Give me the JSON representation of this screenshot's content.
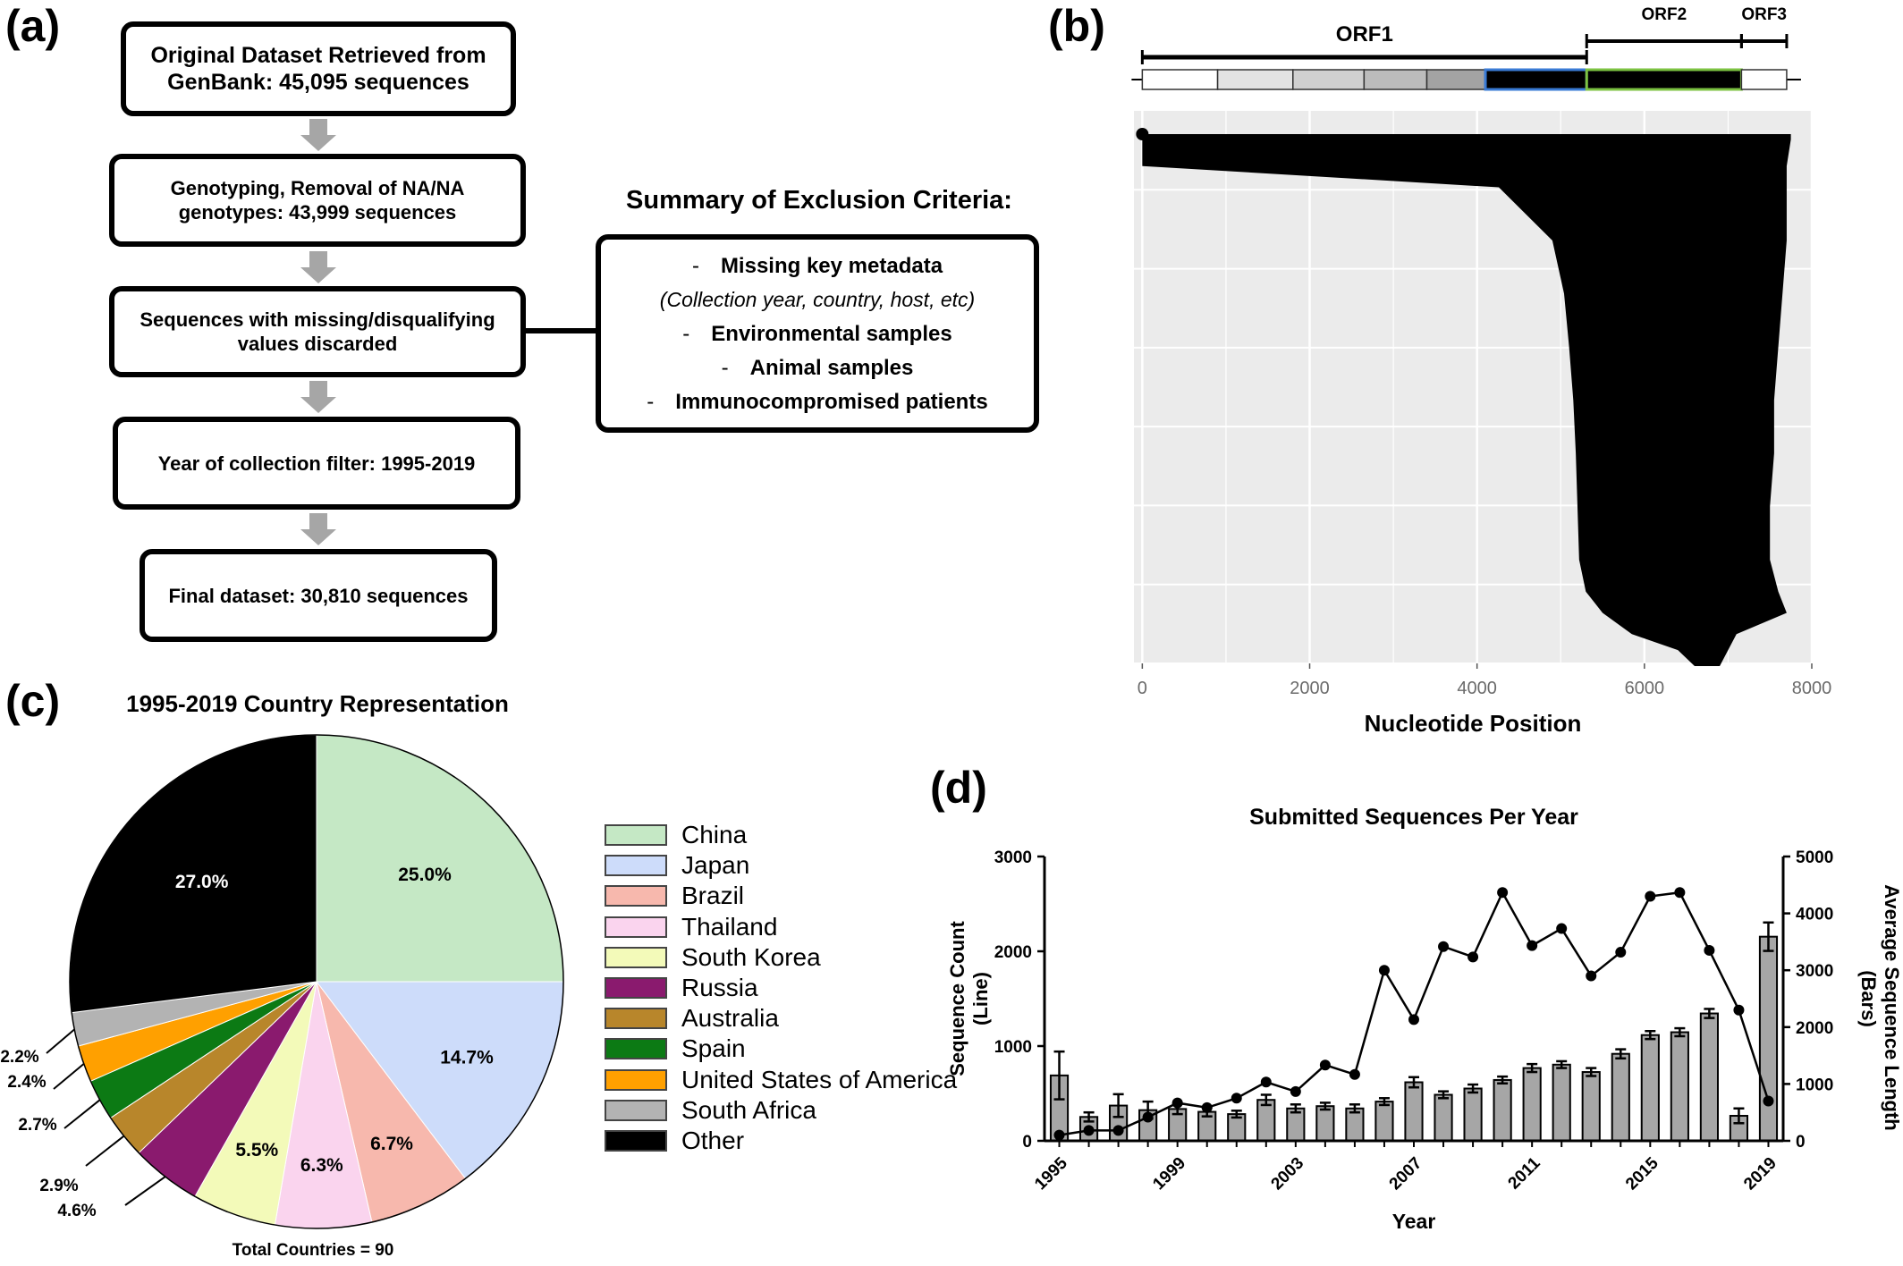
{
  "panels": {
    "a": "(a)",
    "b": "(b)",
    "c": "(c)",
    "d": "(d)"
  },
  "flow": {
    "box1": [
      "Original Dataset Retrieved from",
      "GenBank: 45,095 sequences"
    ],
    "box2": [
      "Genotyping, Removal of NA/NA",
      "genotypes: 43,999 sequences"
    ],
    "box3": [
      "Sequences with missing/disqualifying",
      "values discarded"
    ],
    "box4": [
      "Year of collection filter: 1995-2019"
    ],
    "box5": [
      "Final dataset: 30,810 sequences"
    ],
    "summary_title": "Summary of Exclusion Criteria:",
    "criteria": [
      {
        "dash": "-",
        "text": "Missing key metadata"
      },
      {
        "dash": "",
        "text": "(Collection year, country, host, etc)"
      },
      {
        "dash": "-",
        "text": "Environmental samples"
      },
      {
        "dash": "-",
        "text": "Animal samples"
      },
      {
        "dash": "-",
        "text": "Immunocompromised patients"
      }
    ]
  },
  "chart_data": [
    {
      "panel": "b",
      "type": "line",
      "xlabel": "Nucleotide Position",
      "xlim": [
        -100,
        8000
      ],
      "xticks": [
        0,
        2000,
        4000,
        6000,
        8000
      ],
      "grid": true,
      "background": "#ebebeb",
      "genome_map": {
        "orfs": [
          {
            "name": "ORF1",
            "start": 0,
            "end": 5310
          },
          {
            "name": "ORF2",
            "start": 5310,
            "end": 7160
          },
          {
            "name": "ORF3",
            "start": 7160,
            "end": 7700
          }
        ],
        "segments": [
          {
            "start": 0,
            "end": 900,
            "fill": "#ffffff",
            "stroke": "#333333"
          },
          {
            "start": 900,
            "end": 1800,
            "fill": "#e3e3e3",
            "stroke": "#333333"
          },
          {
            "start": 1800,
            "end": 2650,
            "fill": "#d0d0d0",
            "stroke": "#333333"
          },
          {
            "start": 2650,
            "end": 3400,
            "fill": "#bcbcbc",
            "stroke": "#333333"
          },
          {
            "start": 3400,
            "end": 4100,
            "fill": "#a3a3a3",
            "stroke": "#333333"
          },
          {
            "start": 4100,
            "end": 5310,
            "fill": "#000000",
            "stroke": "#3a7bd5"
          },
          {
            "start": 5310,
            "end": 7160,
            "fill": "#000000",
            "stroke": "#7cc242"
          },
          {
            "start": 7160,
            "end": 7700,
            "fill": "#ffffff",
            "stroke": "#333333"
          }
        ]
      },
      "coverage_profile": {
        "description_free": true,
        "rows_fraction": [
          0,
          0.01,
          0.06,
          0.1,
          0.2,
          0.3,
          0.4,
          0.5,
          0.6,
          0.7,
          0.8,
          0.86,
          0.9,
          0.94,
          0.97,
          1.0
        ],
        "start": [
          0,
          0,
          0,
          4260,
          4900,
          5040,
          5100,
          5150,
          5180,
          5200,
          5220,
          5300,
          5500,
          5850,
          6400,
          6600
        ],
        "end": [
          7750,
          7750,
          7700,
          7700,
          7700,
          7650,
          7600,
          7550,
          7550,
          7500,
          7500,
          7600,
          7700,
          7100,
          7000,
          6900
        ]
      }
    },
    {
      "panel": "c",
      "type": "pie",
      "title": "1995-2019 Country Representation",
      "note": "Total Countries = 90",
      "slices": [
        {
          "label": "China",
          "value": 25.0,
          "text": "25.0%",
          "color": "#c5e8c5"
        },
        {
          "label": "Japan",
          "value": 14.7,
          "text": "14.7%",
          "color": "#cddcfa"
        },
        {
          "label": "Brazil",
          "value": 6.7,
          "text": "6.7%",
          "color": "#f7b8ad"
        },
        {
          "label": "Thailand",
          "value": 6.3,
          "text": "6.3%",
          "color": "#fad4ee"
        },
        {
          "label": "South Korea",
          "value": 5.5,
          "text": "5.5%",
          "color": "#f3fab9"
        },
        {
          "label": "Russia",
          "value": 4.6,
          "text": "4.6%",
          "color": "#8a1a6e"
        },
        {
          "label": "Australia",
          "value": 2.9,
          "text": "2.9%",
          "color": "#b8862b"
        },
        {
          "label": "Spain",
          "value": 2.7,
          "text": "2.7%",
          "color": "#0c7a14"
        },
        {
          "label": "United States of America",
          "value": 2.4,
          "text": "2.4%",
          "color": "#ffa000"
        },
        {
          "label": "South Africa",
          "value": 2.2,
          "text": "2.2%",
          "color": "#b3b3b3"
        },
        {
          "label": "Other",
          "value": 27.0,
          "text": "27.0%",
          "color": "#000000"
        }
      ]
    },
    {
      "panel": "d",
      "type": "bar",
      "title": "Submitted Sequences Per Year",
      "xlabel": "Year",
      "ylabel": "Sequence Count (Line)",
      "ylabel_lines": [
        "Sequence Count",
        "(Line)"
      ],
      "y2label": "Average Sequence Length (Bars)",
      "y2label_lines": [
        "Average Sequence Length",
        "(Bars)"
      ],
      "ylim": [
        0,
        3000
      ],
      "y2lim": [
        0,
        5000
      ],
      "yticks": [
        0,
        1000,
        2000,
        3000
      ],
      "y2ticks": [
        0,
        1000,
        2000,
        3000,
        4000,
        5000
      ],
      "xticks": [
        1995,
        1999,
        2003,
        2007,
        2011,
        2015,
        2019
      ],
      "years": [
        1995,
        1996,
        1997,
        1998,
        1999,
        2000,
        2001,
        2002,
        2003,
        2004,
        2005,
        2006,
        2007,
        2008,
        2009,
        2010,
        2011,
        2012,
        2013,
        2014,
        2015,
        2016,
        2017,
        2018,
        2019
      ],
      "bars_avg_length": [
        1150,
        420,
        620,
        540,
        560,
        510,
        470,
        720,
        570,
        610,
        570,
        690,
        1030,
        810,
        920,
        1070,
        1280,
        1340,
        1210,
        1530,
        1860,
        1910,
        2240,
        440,
        3590
      ],
      "bars_error": [
        420,
        80,
        200,
        150,
        90,
        80,
        60,
        90,
        70,
        60,
        70,
        60,
        90,
        60,
        70,
        60,
        70,
        60,
        70,
        80,
        70,
        70,
        80,
        130,
        250
      ],
      "line_count": [
        60,
        110,
        110,
        250,
        400,
        350,
        450,
        620,
        520,
        800,
        700,
        1800,
        1280,
        2050,
        1940,
        2620,
        2060,
        2240,
        1740,
        1990,
        2580,
        2620,
        2010,
        1380,
        420
      ],
      "bar_color": "#a6a6a6"
    }
  ]
}
